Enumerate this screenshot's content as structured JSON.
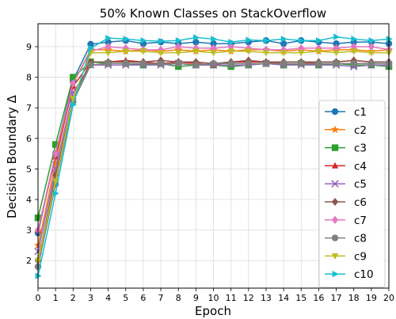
{
  "chart_data": {
    "type": "line",
    "title": "50% Known Classes on StackOverflow",
    "xlabel": "Epoch",
    "ylabel": "Decision Boundary Δ",
    "x": [
      0,
      1,
      2,
      3,
      4,
      5,
      6,
      7,
      8,
      9,
      10,
      11,
      12,
      13,
      14,
      15,
      16,
      17,
      18,
      19,
      20
    ],
    "xlim": [
      0,
      20
    ],
    "ylim": [
      1.1,
      9.75
    ],
    "xticks": [
      "0",
      "1",
      "2",
      "3",
      "4",
      "5",
      "6",
      "7",
      "8",
      "9",
      "10",
      "11",
      "12",
      "13",
      "14",
      "15",
      "16",
      "17",
      "18",
      "19",
      "20"
    ],
    "yticks": [
      "2",
      "3",
      "4",
      "5",
      "6",
      "7",
      "8",
      "9"
    ],
    "grid": true,
    "legend_position": "center-right",
    "series": [
      {
        "name": "c1",
        "color": "#1f77b4",
        "marker": "circle",
        "values": [
          2.9,
          5.5,
          7.9,
          9.08,
          9.15,
          9.2,
          9.1,
          9.15,
          9.1,
          9.15,
          9.1,
          9.1,
          9.15,
          9.2,
          9.1,
          9.2,
          9.15,
          9.1,
          9.15,
          9.15,
          9.1
        ]
      },
      {
        "name": "c2",
        "color": "#ff7f0e",
        "marker": "star",
        "values": [
          2.5,
          5.2,
          7.8,
          8.9,
          8.9,
          8.85,
          8.9,
          8.85,
          8.9,
          8.85,
          8.9,
          8.85,
          8.9,
          8.9,
          8.85,
          8.9,
          8.85,
          8.9,
          8.9,
          8.85,
          8.9
        ]
      },
      {
        "name": "c3",
        "color": "#2ca02c",
        "marker": "square",
        "values": [
          3.4,
          5.8,
          8.0,
          8.5,
          8.45,
          8.45,
          8.4,
          8.45,
          8.35,
          8.4,
          8.4,
          8.35,
          8.4,
          8.45,
          8.4,
          8.45,
          8.4,
          8.45,
          8.4,
          8.4,
          8.35
        ]
      },
      {
        "name": "c4",
        "color": "#d62728",
        "marker": "triangle-up",
        "values": [
          3.0,
          5.4,
          7.7,
          8.5,
          8.5,
          8.55,
          8.5,
          8.45,
          8.5,
          8.45,
          8.4,
          8.5,
          8.5,
          8.5,
          8.45,
          8.45,
          8.5,
          8.5,
          8.55,
          8.5,
          8.5
        ]
      },
      {
        "name": "c5",
        "color": "#9467bd",
        "marker": "x",
        "values": [
          2.3,
          5.0,
          7.5,
          8.4,
          8.4,
          8.4,
          8.4,
          8.4,
          8.45,
          8.4,
          8.4,
          8.4,
          8.4,
          8.45,
          8.4,
          8.4,
          8.4,
          8.4,
          8.35,
          8.4,
          8.4
        ]
      },
      {
        "name": "c6",
        "color": "#8c564b",
        "marker": "diamond",
        "values": [
          2.0,
          4.8,
          7.3,
          8.5,
          8.5,
          8.5,
          8.5,
          8.55,
          8.5,
          8.5,
          8.45,
          8.5,
          8.55,
          8.5,
          8.5,
          8.5,
          8.5,
          8.5,
          8.55,
          8.5,
          8.5
        ]
      },
      {
        "name": "c7",
        "color": "#e377c2",
        "marker": "diamond",
        "values": [
          3.0,
          5.5,
          7.8,
          8.85,
          9.0,
          8.95,
          8.9,
          8.9,
          9.0,
          8.95,
          8.95,
          9.0,
          8.95,
          8.9,
          8.9,
          8.95,
          8.95,
          8.95,
          9.0,
          9.0,
          8.9
        ]
      },
      {
        "name": "c8",
        "color": "#7f7f7f",
        "marker": "circle",
        "values": [
          1.8,
          4.5,
          7.2,
          8.4,
          8.45,
          8.45,
          8.45,
          8.45,
          8.45,
          8.4,
          8.45,
          8.45,
          8.45,
          8.45,
          8.45,
          8.45,
          8.45,
          8.45,
          8.45,
          8.45,
          8.45
        ]
      },
      {
        "name": "c9",
        "color": "#bcbd22",
        "marker": "triangle-down",
        "values": [
          2.0,
          4.6,
          7.3,
          8.8,
          8.8,
          8.85,
          8.85,
          8.8,
          8.8,
          8.85,
          8.8,
          8.85,
          8.85,
          8.8,
          8.8,
          8.8,
          8.85,
          8.8,
          8.85,
          8.8,
          8.8
        ]
      },
      {
        "name": "c10",
        "color": "#17becf",
        "marker": "triangle-right",
        "values": [
          1.5,
          4.2,
          7.1,
          8.95,
          9.28,
          9.25,
          9.2,
          9.18,
          9.2,
          9.3,
          9.25,
          9.15,
          9.22,
          9.2,
          9.25,
          9.2,
          9.2,
          9.32,
          9.25,
          9.2,
          9.25
        ]
      }
    ]
  }
}
